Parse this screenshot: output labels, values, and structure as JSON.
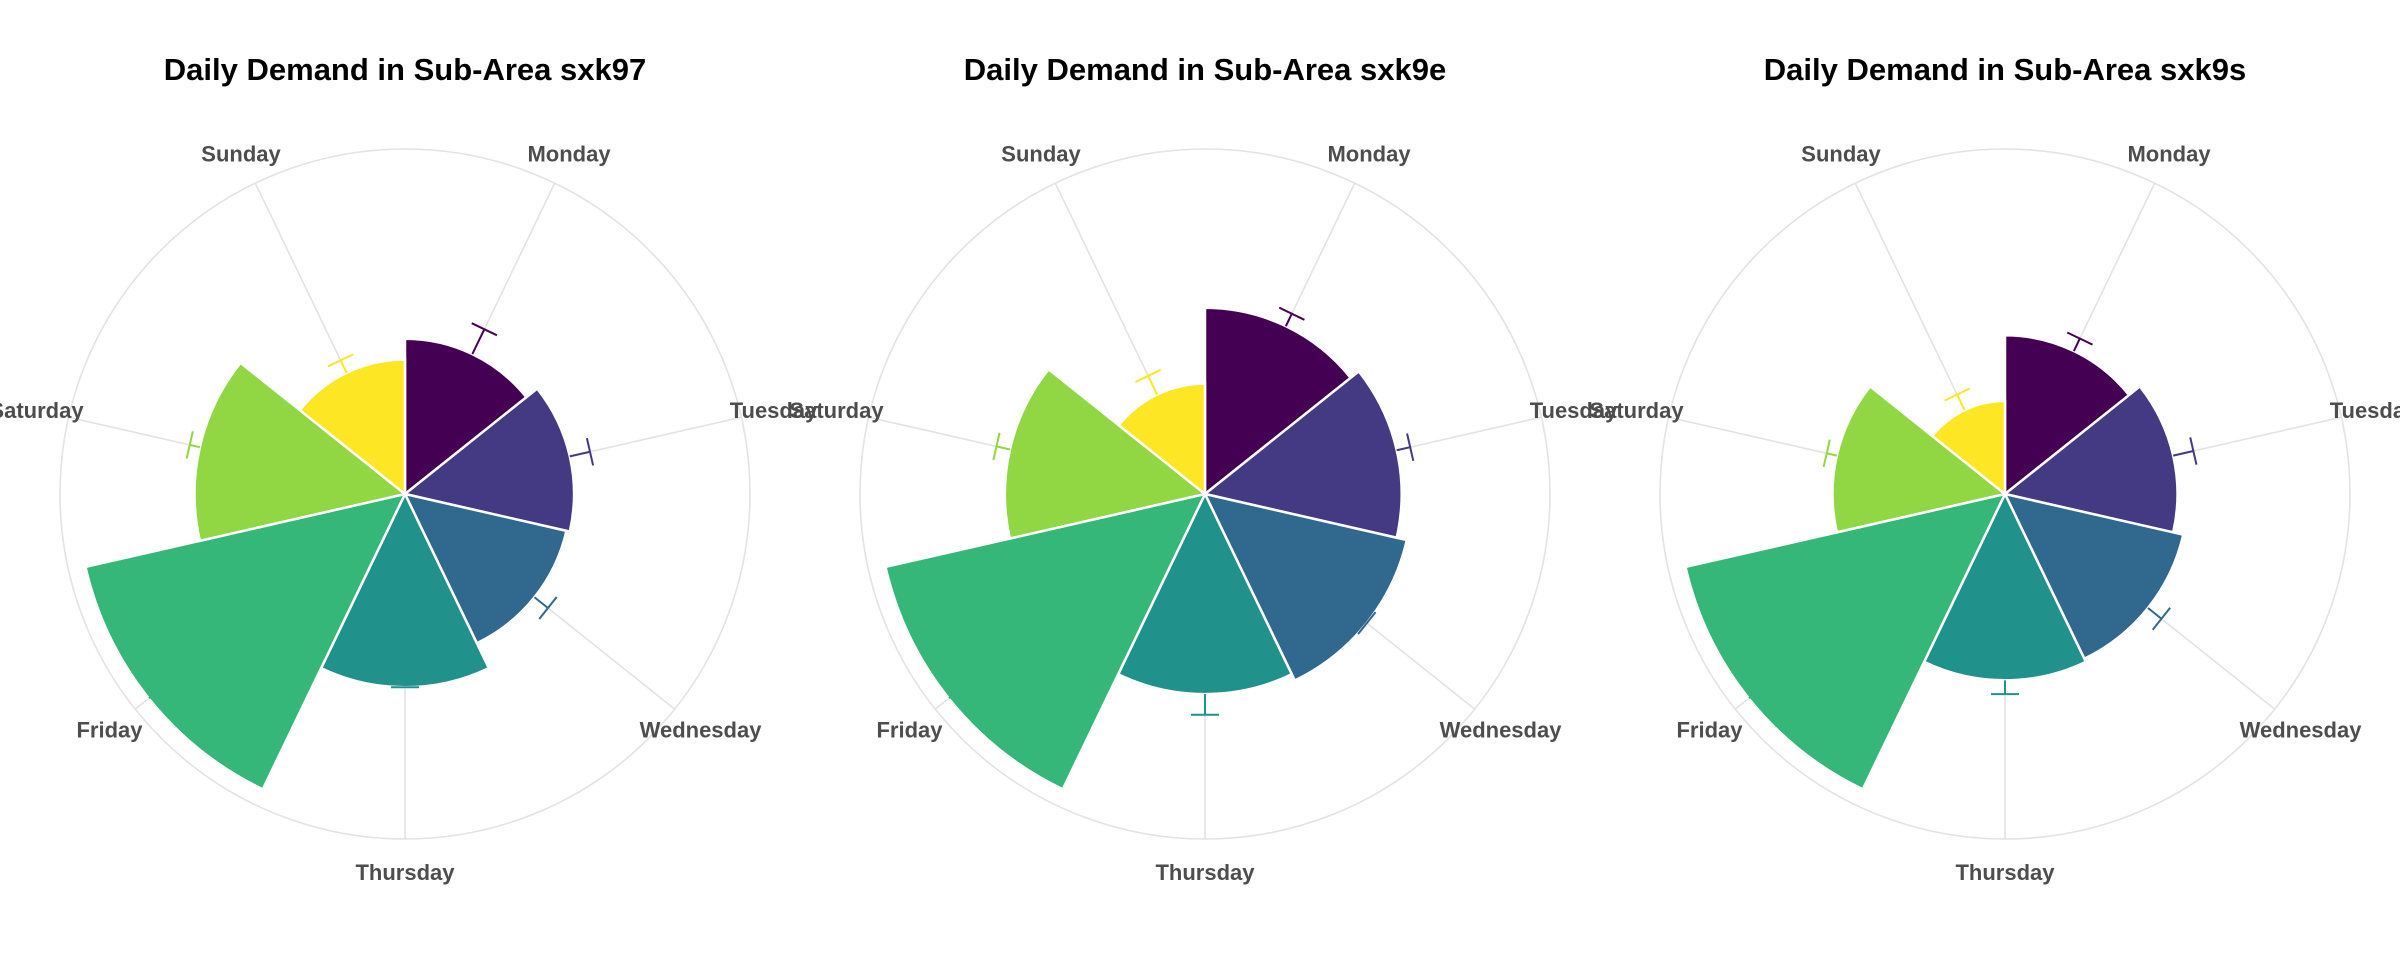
{
  "chart_data": [
    {
      "type": "bar",
      "coordinate_system": "polar",
      "title": "Daily Demand in Sub-Area sxk97",
      "categories": [
        "Monday",
        "Tuesday",
        "Wednesday",
        "Thursday",
        "Friday",
        "Saturday",
        "Sunday"
      ],
      "values": [
        0.45,
        0.49,
        0.48,
        0.56,
        0.95,
        0.61,
        0.39
      ],
      "error_bar_ends": [
        0.53,
        0.55,
        0.53,
        0.56,
        0.81,
        0.64,
        0.43
      ],
      "rlim": [
        0,
        1
      ],
      "grid": true,
      "legend": "none"
    },
    {
      "type": "bar",
      "coordinate_system": "polar",
      "title": "Daily Demand in Sub-Area sxk9e",
      "categories": [
        "Monday",
        "Tuesday",
        "Wednesday",
        "Thursday",
        "Friday",
        "Saturday",
        "Sunday"
      ],
      "values": [
        0.54,
        0.57,
        0.6,
        0.58,
        0.95,
        0.58,
        0.32
      ],
      "error_bar_ends": [
        0.58,
        0.61,
        0.6,
        0.64,
        0.81,
        0.62,
        0.38
      ],
      "rlim": [
        0,
        1
      ],
      "grid": true,
      "legend": "none"
    },
    {
      "type": "bar",
      "coordinate_system": "polar",
      "title": "Daily Demand in Sub-Area sxk9s",
      "categories": [
        "Monday",
        "Tuesday",
        "Wednesday",
        "Thursday",
        "Friday",
        "Saturday",
        "Sunday"
      ],
      "values": [
        0.46,
        0.5,
        0.53,
        0.54,
        0.95,
        0.5,
        0.27
      ],
      "error_bar_ends": [
        0.5,
        0.56,
        0.58,
        0.58,
        0.81,
        0.53,
        0.32
      ],
      "rlim": [
        0,
        1
      ],
      "grid": true,
      "legend": "none"
    }
  ],
  "colors": {
    "Monday": "#440154",
    "Tuesday": "#443983",
    "Wednesday": "#31688e",
    "Thursday": "#21918c",
    "Friday": "#35b779",
    "Saturday": "#90d743",
    "Sunday": "#fde725",
    "grid": "#e3e3e3",
    "label": "#4d4d4d",
    "title": "#000000"
  }
}
